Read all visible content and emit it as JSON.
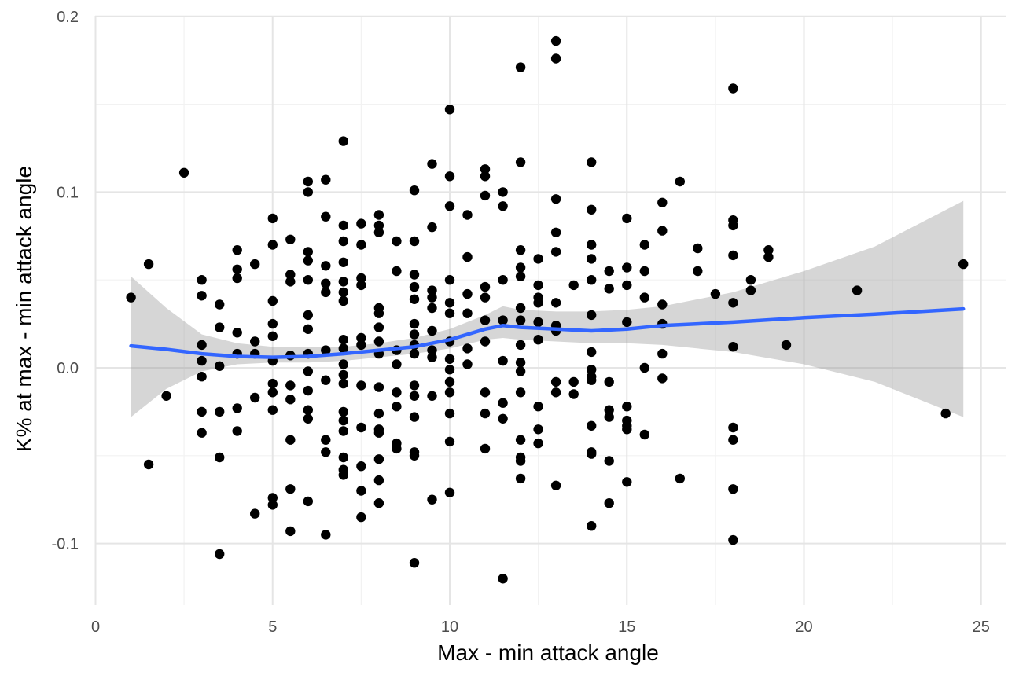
{
  "colors": {
    "background": "#ffffff",
    "grid_major": "#e5e5e5",
    "grid_minor": "#f2f2f2",
    "points": "#000000",
    "smooth_line": "#3366ff",
    "confidence_band": "#999999",
    "tick_text": "#4d4d4d"
  },
  "chart_data": {
    "type": "scatter",
    "title": "",
    "xlabel": "Max - min attack angle",
    "ylabel": "K% at max - min attack angle",
    "xlim": [
      0,
      25
    ],
    "ylim": [
      -0.13,
      0.2
    ],
    "x_ticks": [
      0,
      5,
      10,
      15,
      20,
      25
    ],
    "x_tick_labels": [
      "0",
      "5",
      "10",
      "15",
      "20",
      "25"
    ],
    "y_ticks": [
      -0.1,
      0.0,
      0.1,
      0.2
    ],
    "y_tick_labels": [
      "-0.1",
      "0.0",
      "0.1",
      "0.2"
    ],
    "grid": true,
    "legend": "none",
    "points": [
      [
        1,
        0.04
      ],
      [
        1.5,
        0.059
      ],
      [
        1.5,
        -0.055
      ],
      [
        2,
        -0.016
      ],
      [
        2.5,
        0.111
      ],
      [
        3,
        0.05
      ],
      [
        3,
        0.041
      ],
      [
        3,
        0.013
      ],
      [
        3,
        0.004
      ],
      [
        3,
        -0.005
      ],
      [
        3,
        -0.025
      ],
      [
        3,
        -0.037
      ],
      [
        3.5,
        0.036
      ],
      [
        3.5,
        0.023
      ],
      [
        3.5,
        0.001
      ],
      [
        3.5,
        -0.025
      ],
      [
        3.5,
        -0.051
      ],
      [
        3.5,
        -0.106
      ],
      [
        4,
        0.067
      ],
      [
        4,
        0.056
      ],
      [
        4,
        0.051
      ],
      [
        4,
        0.02
      ],
      [
        4,
        0.008
      ],
      [
        4,
        -0.023
      ],
      [
        4,
        -0.036
      ],
      [
        4.5,
        0.059
      ],
      [
        4.5,
        0.015
      ],
      [
        4.5,
        0.008
      ],
      [
        4.5,
        -0.017
      ],
      [
        4.5,
        -0.083
      ],
      [
        5,
        0.085
      ],
      [
        5,
        0.07
      ],
      [
        5,
        0.038
      ],
      [
        5,
        0.025
      ],
      [
        5,
        0.018
      ],
      [
        5,
        0.004
      ],
      [
        5,
        -0.009
      ],
      [
        5,
        -0.014
      ],
      [
        5,
        -0.024
      ],
      [
        5,
        -0.074
      ],
      [
        5,
        -0.078
      ],
      [
        5.5,
        0.073
      ],
      [
        5.5,
        0.053
      ],
      [
        5.5,
        0.049
      ],
      [
        5.5,
        0.007
      ],
      [
        5.5,
        -0.01
      ],
      [
        5.5,
        -0.018
      ],
      [
        5.5,
        -0.041
      ],
      [
        5.5,
        -0.069
      ],
      [
        5.5,
        -0.093
      ],
      [
        6,
        0.106
      ],
      [
        6,
        0.1
      ],
      [
        6,
        0.066
      ],
      [
        6,
        0.061
      ],
      [
        6,
        0.05
      ],
      [
        6,
        0.03
      ],
      [
        6,
        0.022
      ],
      [
        6,
        0.008
      ],
      [
        6,
        -0.002
      ],
      [
        6,
        -0.013
      ],
      [
        6,
        -0.024
      ],
      [
        6,
        -0.029
      ],
      [
        6,
        -0.076
      ],
      [
        6.5,
        0.107
      ],
      [
        6.5,
        0.086
      ],
      [
        6.5,
        0.058
      ],
      [
        6.5,
        0.048
      ],
      [
        6.5,
        0.043
      ],
      [
        6.5,
        0.01
      ],
      [
        6.5,
        -0.007
      ],
      [
        6.5,
        -0.041
      ],
      [
        6.5,
        -0.048
      ],
      [
        6.5,
        -0.095
      ],
      [
        7,
        0.129
      ],
      [
        7,
        0.081
      ],
      [
        7,
        0.072
      ],
      [
        7,
        0.06
      ],
      [
        7,
        0.049
      ],
      [
        7,
        0.043
      ],
      [
        7,
        0.038
      ],
      [
        7,
        0.016
      ],
      [
        7,
        0.011
      ],
      [
        7,
        0.002
      ],
      [
        7,
        -0.004
      ],
      [
        7,
        -0.009
      ],
      [
        7,
        -0.025
      ],
      [
        7,
        -0.03
      ],
      [
        7,
        -0.036
      ],
      [
        7,
        -0.051
      ],
      [
        7,
        -0.058
      ],
      [
        7,
        -0.061
      ],
      [
        7.5,
        0.082
      ],
      [
        7.5,
        0.07
      ],
      [
        7.5,
        0.051
      ],
      [
        7.5,
        0.047
      ],
      [
        7.5,
        0.017
      ],
      [
        7.5,
        0.013
      ],
      [
        7.5,
        -0.01
      ],
      [
        7.5,
        -0.034
      ],
      [
        7.5,
        -0.056
      ],
      [
        7.5,
        -0.07
      ],
      [
        7.5,
        -0.085
      ],
      [
        8,
        0.087
      ],
      [
        8,
        0.081
      ],
      [
        8,
        0.077
      ],
      [
        8,
        0.034
      ],
      [
        8,
        0.031
      ],
      [
        8,
        0.023
      ],
      [
        8,
        0.015
      ],
      [
        8,
        0.008
      ],
      [
        8,
        -0.011
      ],
      [
        8,
        -0.026
      ],
      [
        8,
        -0.035
      ],
      [
        8,
        -0.037
      ],
      [
        8,
        -0.052
      ],
      [
        8,
        -0.064
      ],
      [
        8,
        -0.077
      ],
      [
        8.5,
        0.072
      ],
      [
        8.5,
        0.055
      ],
      [
        8.5,
        0.01
      ],
      [
        8.5,
        0.002
      ],
      [
        8.5,
        -0.014
      ],
      [
        8.5,
        -0.022
      ],
      [
        8.5,
        -0.043
      ],
      [
        8.5,
        -0.046
      ],
      [
        9,
        0.101
      ],
      [
        9,
        0.072
      ],
      [
        9,
        0.053
      ],
      [
        9,
        0.046
      ],
      [
        9,
        0.039
      ],
      [
        9,
        0.025
      ],
      [
        9,
        0.019
      ],
      [
        9,
        0.013
      ],
      [
        9,
        0.008
      ],
      [
        9,
        -0.01
      ],
      [
        9,
        -0.016
      ],
      [
        9,
        -0.028
      ],
      [
        9,
        -0.048
      ],
      [
        9,
        -0.05
      ],
      [
        9,
        -0.111
      ],
      [
        9.5,
        0.116
      ],
      [
        9.5,
        0.08
      ],
      [
        9.5,
        0.044
      ],
      [
        9.5,
        0.04
      ],
      [
        9.5,
        0.034
      ],
      [
        9.5,
        0.021
      ],
      [
        9.5,
        0.01
      ],
      [
        9.5,
        0.006
      ],
      [
        9.5,
        -0.016
      ],
      [
        9.5,
        -0.075
      ],
      [
        10,
        0.147
      ],
      [
        10,
        0.109
      ],
      [
        10,
        0.092
      ],
      [
        10,
        0.05
      ],
      [
        10,
        0.037
      ],
      [
        10,
        0.031
      ],
      [
        10,
        0.015
      ],
      [
        10,
        0.005
      ],
      [
        10,
        -0.001
      ],
      [
        10,
        -0.008
      ],
      [
        10,
        -0.014
      ],
      [
        10,
        -0.026
      ],
      [
        10,
        -0.042
      ],
      [
        10,
        -0.071
      ],
      [
        10.5,
        0.087
      ],
      [
        10.5,
        0.063
      ],
      [
        10.5,
        0.042
      ],
      [
        10.5,
        0.031
      ],
      [
        10.5,
        0.011
      ],
      [
        10.5,
        0.002
      ],
      [
        11,
        0.113
      ],
      [
        11,
        0.109
      ],
      [
        11,
        0.098
      ],
      [
        11,
        0.046
      ],
      [
        11,
        0.04
      ],
      [
        11,
        0.027
      ],
      [
        11,
        0.015
      ],
      [
        11,
        -0.014
      ],
      [
        11,
        -0.026
      ],
      [
        11,
        -0.046
      ],
      [
        11.5,
        0.1
      ],
      [
        11.5,
        0.092
      ],
      [
        11.5,
        0.05
      ],
      [
        11.5,
        0.027
      ],
      [
        11.5,
        0.004
      ],
      [
        11.5,
        -0.02
      ],
      [
        11.5,
        -0.029
      ],
      [
        11.5,
        -0.12
      ],
      [
        12,
        0.171
      ],
      [
        12,
        0.117
      ],
      [
        12,
        0.067
      ],
      [
        12,
        0.057
      ],
      [
        12,
        0.052
      ],
      [
        12,
        0.034
      ],
      [
        12,
        0.027
      ],
      [
        12,
        0.013
      ],
      [
        12,
        0.003
      ],
      [
        12,
        -0.002
      ],
      [
        12,
        -0.014
      ],
      [
        12,
        -0.041
      ],
      [
        12,
        -0.051
      ],
      [
        12,
        -0.053
      ],
      [
        12,
        -0.063
      ],
      [
        12.5,
        0.062
      ],
      [
        12.5,
        0.047
      ],
      [
        12.5,
        0.04
      ],
      [
        12.5,
        0.037
      ],
      [
        12.5,
        0.026
      ],
      [
        12.5,
        0.016
      ],
      [
        12.5,
        -0.022
      ],
      [
        12.5,
        -0.035
      ],
      [
        12.5,
        -0.043
      ],
      [
        13,
        0.186
      ],
      [
        13,
        0.176
      ],
      [
        13,
        0.096
      ],
      [
        13,
        0.077
      ],
      [
        13,
        0.066
      ],
      [
        13,
        0.037
      ],
      [
        13,
        0.024
      ],
      [
        13,
        0.021
      ],
      [
        13,
        -0.008
      ],
      [
        13,
        -0.014
      ],
      [
        13,
        -0.067
      ],
      [
        13.5,
        0.047
      ],
      [
        13.5,
        -0.008
      ],
      [
        13.5,
        -0.015
      ],
      [
        14,
        0.117
      ],
      [
        14,
        0.09
      ],
      [
        14,
        0.07
      ],
      [
        14,
        0.062
      ],
      [
        14,
        0.05
      ],
      [
        14,
        0.03
      ],
      [
        14,
        0.009
      ],
      [
        14,
        -0.001
      ],
      [
        14,
        -0.005
      ],
      [
        14,
        -0.007
      ],
      [
        14,
        -0.033
      ],
      [
        14,
        -0.048
      ],
      [
        14,
        -0.049
      ],
      [
        14,
        -0.09
      ],
      [
        14.5,
        0.055
      ],
      [
        14.5,
        0.045
      ],
      [
        14.5,
        -0.008
      ],
      [
        14.5,
        -0.024
      ],
      [
        14.5,
        -0.028
      ],
      [
        14.5,
        -0.053
      ],
      [
        14.5,
        -0.077
      ],
      [
        15,
        0.085
      ],
      [
        15,
        0.057
      ],
      [
        15,
        0.047
      ],
      [
        15,
        0.026
      ],
      [
        15,
        -0.022
      ],
      [
        15,
        -0.03
      ],
      [
        15,
        -0.033
      ],
      [
        15,
        -0.035
      ],
      [
        15,
        -0.065
      ],
      [
        15.5,
        0.07
      ],
      [
        15.5,
        0.055
      ],
      [
        15.5,
        0.04
      ],
      [
        15.5,
        0.0
      ],
      [
        15.5,
        -0.038
      ],
      [
        16,
        0.094
      ],
      [
        16,
        0.078
      ],
      [
        16,
        0.036
      ],
      [
        16,
        0.025
      ],
      [
        16,
        0.008
      ],
      [
        16,
        -0.006
      ],
      [
        16.5,
        0.106
      ],
      [
        16.5,
        -0.063
      ],
      [
        17,
        0.068
      ],
      [
        17,
        0.055
      ],
      [
        17.5,
        0.042
      ],
      [
        18,
        0.159
      ],
      [
        18,
        0.084
      ],
      [
        18,
        0.081
      ],
      [
        18,
        0.064
      ],
      [
        18,
        0.037
      ],
      [
        18,
        0.012
      ],
      [
        18,
        -0.034
      ],
      [
        18,
        -0.041
      ],
      [
        18,
        -0.069
      ],
      [
        18,
        -0.098
      ],
      [
        18.5,
        0.05
      ],
      [
        18.5,
        0.044
      ],
      [
        19,
        0.067
      ],
      [
        19,
        0.063
      ],
      [
        19.5,
        0.013
      ],
      [
        21.5,
        0.044
      ],
      [
        24,
        -0.026
      ],
      [
        24.5,
        0.059
      ]
    ],
    "smooth": {
      "x": [
        1,
        2,
        3,
        4,
        5,
        6,
        7,
        8,
        9,
        10,
        11,
        11.5,
        12,
        13,
        14,
        15,
        16,
        18,
        20,
        22,
        24.5
      ],
      "y": [
        0.0125,
        0.0105,
        0.008,
        0.0065,
        0.006,
        0.0065,
        0.008,
        0.01,
        0.012,
        0.016,
        0.022,
        0.024,
        0.023,
        0.022,
        0.021,
        0.022,
        0.024,
        0.026,
        0.0285,
        0.0305,
        0.0335
      ],
      "lower": [
        -0.028,
        -0.012,
        -0.002,
        0.002,
        0.003,
        0.003,
        0.004,
        0.006,
        0.008,
        0.011,
        0.016,
        0.017,
        0.016,
        0.015,
        0.014,
        0.014,
        0.013,
        0.009,
        0.002,
        -0.008,
        -0.028
      ],
      "upper": [
        0.052,
        0.034,
        0.019,
        0.014,
        0.012,
        0.012,
        0.012,
        0.014,
        0.017,
        0.022,
        0.03,
        0.035,
        0.033,
        0.032,
        0.032,
        0.033,
        0.035,
        0.043,
        0.055,
        0.069,
        0.095
      ]
    }
  }
}
